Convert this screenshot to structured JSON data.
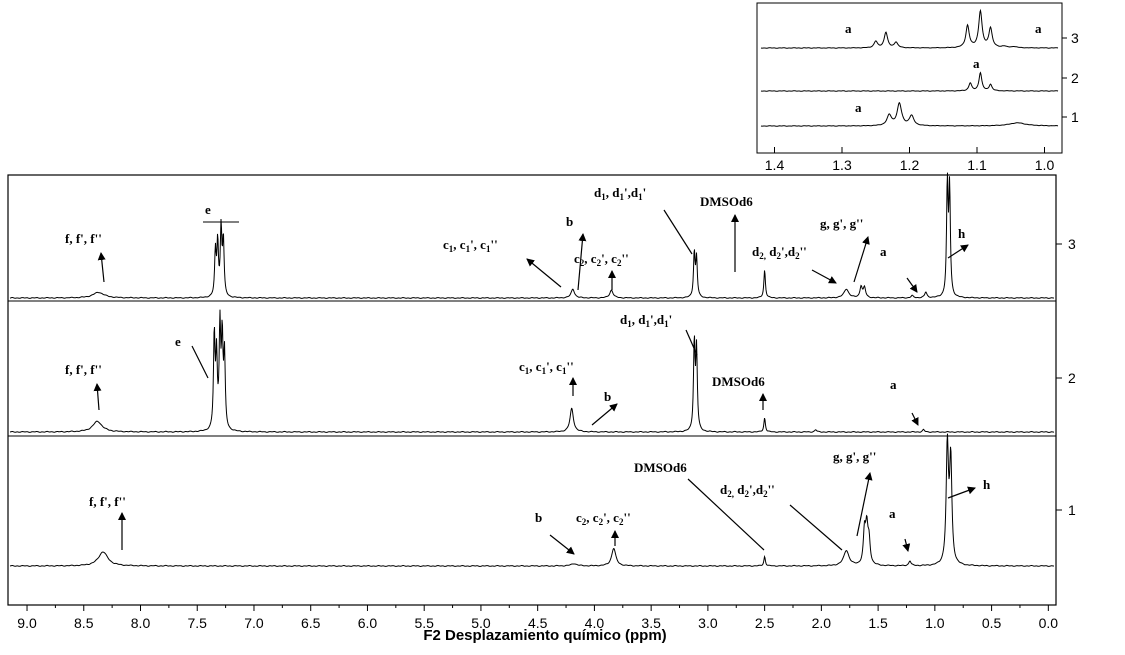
{
  "chart_data": {
    "type": "line",
    "title": "",
    "xlabel": "F2 Desplazamiento químico (ppm)",
    "ylabel": "",
    "xlim": [
      9.15,
      -0.05
    ],
    "x_reversed": true,
    "x_ticks": [
      "9.0",
      "8.5",
      "8.0",
      "7.5",
      "7.0",
      "6.5",
      "6.0",
      "5.5",
      "5.0",
      "4.5",
      "4.0",
      "3.5",
      "3.0",
      "2.5",
      "2.0",
      "1.5",
      "1.0",
      "0.5",
      "0.0"
    ],
    "x_tick_values": [
      9.0,
      8.5,
      8.0,
      7.5,
      7.0,
      6.5,
      6.0,
      5.5,
      5.0,
      4.5,
      4.0,
      3.5,
      3.0,
      2.5,
      2.0,
      1.5,
      1.0,
      0.5,
      0.0
    ],
    "grid": false,
    "series": [
      {
        "name": "1",
        "peaks": [
          {
            "x": 8.33,
            "h": 0.12,
            "w": 0.05
          },
          {
            "x": 4.18,
            "h": 0.02,
            "w": 0.03
          },
          {
            "x": 3.83,
            "h": 0.15,
            "w": 0.022
          },
          {
            "x": 2.5,
            "h": 0.08,
            "w": 0.008
          },
          {
            "x": 1.78,
            "h": 0.13,
            "w": 0.028
          },
          {
            "x": 1.62,
            "h": 0.28,
            "w": 0.012
          },
          {
            "x": 1.6,
            "h": 0.3,
            "w": 0.012
          },
          {
            "x": 1.58,
            "h": 0.2,
            "w": 0.012
          },
          {
            "x": 1.22,
            "h": 0.04,
            "w": 0.012
          },
          {
            "x": 0.89,
            "h": 1.0,
            "w": 0.012
          },
          {
            "x": 0.86,
            "h": 0.88,
            "w": 0.012
          }
        ]
      },
      {
        "name": "2",
        "peaks": [
          {
            "x": 8.38,
            "h": 0.09,
            "w": 0.05
          },
          {
            "x": 7.35,
            "h": 0.8,
            "w": 0.008
          },
          {
            "x": 7.33,
            "h": 0.6,
            "w": 0.008
          },
          {
            "x": 7.3,
            "h": 0.85,
            "w": 0.008
          },
          {
            "x": 7.28,
            "h": 0.75,
            "w": 0.008
          },
          {
            "x": 7.26,
            "h": 0.62,
            "w": 0.008
          },
          {
            "x": 4.2,
            "h": 0.2,
            "w": 0.018
          },
          {
            "x": 3.12,
            "h": 0.75,
            "w": 0.008
          },
          {
            "x": 3.1,
            "h": 0.68,
            "w": 0.008
          },
          {
            "x": 2.5,
            "h": 0.12,
            "w": 0.008
          },
          {
            "x": 2.05,
            "h": 0.02,
            "w": 0.01
          },
          {
            "x": 1.1,
            "h": 0.02,
            "w": 0.01
          }
        ]
      },
      {
        "name": "3",
        "peaks": [
          {
            "x": 8.37,
            "h": 0.05,
            "w": 0.06
          },
          {
            "x": 7.34,
            "h": 0.4,
            "w": 0.008
          },
          {
            "x": 7.32,
            "h": 0.48,
            "w": 0.008
          },
          {
            "x": 7.29,
            "h": 0.6,
            "w": 0.008
          },
          {
            "x": 7.27,
            "h": 0.5,
            "w": 0.008
          },
          {
            "x": 4.19,
            "h": 0.08,
            "w": 0.018
          },
          {
            "x": 3.85,
            "h": 0.07,
            "w": 0.018
          },
          {
            "x": 3.12,
            "h": 0.4,
            "w": 0.008
          },
          {
            "x": 3.1,
            "h": 0.35,
            "w": 0.008
          },
          {
            "x": 2.5,
            "h": 0.25,
            "w": 0.008
          },
          {
            "x": 1.78,
            "h": 0.08,
            "w": 0.025
          },
          {
            "x": 1.65,
            "h": 0.1,
            "w": 0.012
          },
          {
            "x": 1.62,
            "h": 0.09,
            "w": 0.012
          },
          {
            "x": 1.2,
            "h": 0.02,
            "w": 0.012
          },
          {
            "x": 1.08,
            "h": 0.05,
            "w": 0.012
          },
          {
            "x": 0.89,
            "h": 1.0,
            "w": 0.008
          },
          {
            "x": 0.87,
            "h": 0.95,
            "w": 0.008
          }
        ]
      }
    ],
    "annotations": {
      "s3": [
        {
          "text": "f, f', f''"
        },
        {
          "text": "e"
        },
        {
          "text": "b"
        },
        {
          "text": "c1, c1', c1''"
        },
        {
          "text": "c2, c2', c2''"
        },
        {
          "text": "d1, d1',d1'"
        },
        {
          "text": "DMSOd6"
        },
        {
          "text": "d2, d2',d2''"
        },
        {
          "text": "g, g', g''"
        },
        {
          "text": "a"
        },
        {
          "text": "h"
        }
      ],
      "s2": [
        {
          "text": "f, f', f''"
        },
        {
          "text": "e"
        },
        {
          "text": "d1, d1',d1'"
        },
        {
          "text": "c1, c1', c1''"
        },
        {
          "text": "b"
        },
        {
          "text": "DMSOd6"
        },
        {
          "text": "a"
        }
      ],
      "s1": [
        {
          "text": "f, f', f''"
        },
        {
          "text": "b"
        },
        {
          "text": "c2, c2', c2''"
        },
        {
          "text": "DMSOd6"
        },
        {
          "text": "d2, d2',d2''"
        },
        {
          "text": "g, g', g''"
        },
        {
          "text": "a"
        },
        {
          "text": "h"
        }
      ]
    },
    "inset": {
      "type": "line",
      "xlim": [
        1.42,
        0.98
      ],
      "x_ticks": [
        "1.4",
        "1.3",
        "1.2",
        "1.1",
        "1.0"
      ],
      "x_tick_values": [
        1.4,
        1.3,
        1.2,
        1.1,
        1.0
      ],
      "series": [
        {
          "name": "1",
          "peaks": [
            {
              "x": 1.23,
              "h": 0.4,
              "w": 0.004
            },
            {
              "x": 1.215,
              "h": 0.85,
              "w": 0.004
            },
            {
              "x": 1.197,
              "h": 0.38,
              "w": 0.004
            },
            {
              "x": 1.04,
              "h": 0.12,
              "w": 0.015
            }
          ],
          "label": "a"
        },
        {
          "name": "2",
          "peaks": [
            {
              "x": 1.11,
              "h": 0.3,
              "w": 0.0025
            },
            {
              "x": 1.095,
              "h": 0.7,
              "w": 0.0025
            },
            {
              "x": 1.08,
              "h": 0.25,
              "w": 0.0025
            }
          ],
          "label": "a"
        },
        {
          "name": "3",
          "peaks": [
            {
              "x": 1.25,
              "h": 0.25,
              "w": 0.003
            },
            {
              "x": 1.235,
              "h": 0.6,
              "w": 0.003
            },
            {
              "x": 1.22,
              "h": 0.22,
              "w": 0.003
            },
            {
              "x": 1.114,
              "h": 0.85,
              "w": 0.003
            },
            {
              "x": 1.095,
              "h": 1.4,
              "w": 0.003
            },
            {
              "x": 1.08,
              "h": 0.75,
              "w": 0.003
            },
            {
              "x": 1.06,
              "h": 0.06,
              "w": 0.004
            },
            {
              "x": 1.045,
              "h": 0.05,
              "w": 0.004
            }
          ],
          "labels": [
            "a",
            "a"
          ]
        }
      ]
    }
  }
}
